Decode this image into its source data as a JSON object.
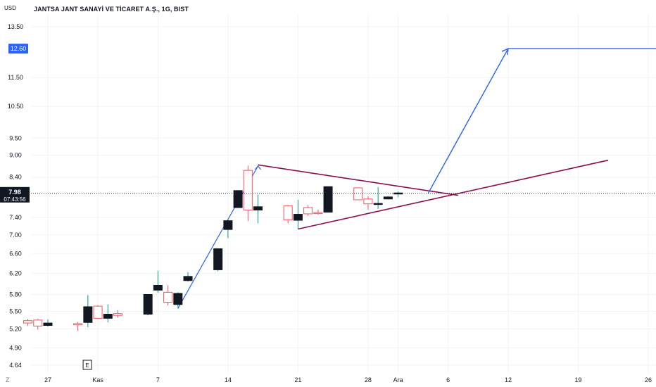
{
  "header": {
    "currency": "USD",
    "title": "JANTSA JANT SANAYİ VE TİCARET A.Ş., 1G, BIST"
  },
  "colors": {
    "up": "#f7525f",
    "down": "#131722",
    "down_wick": "#089981",
    "up_wick": "#f7525f",
    "pattern": "#880e4f",
    "projection": "#2962ff",
    "grid": "#f0f3fa",
    "text": "#131722",
    "target_label_bg": "#2962ff",
    "price_label_bg": "#131722"
  },
  "price_label": {
    "price": "7.98",
    "countdown": "07:43:56"
  },
  "target_label": "12.60",
  "corner_label": "Z",
  "event_marker": "E",
  "chart_data": {
    "type": "candlestick",
    "title": "JANTSA JANT SANAYİ VE TİCARET A.Ş., 1G, BIST",
    "ylabel": "USD",
    "y_scale": "log",
    "ylim": [
      4.55,
      14.2
    ],
    "y_ticks": [
      "13.50",
      "11.50",
      "10.50",
      "9.50",
      "9.00",
      "8.40",
      "7.40",
      "7.00",
      "6.60",
      "6.20",
      "5.80",
      "5.50",
      "5.20",
      "4.90",
      "4.64"
    ],
    "x_ticks": [
      {
        "label": "27",
        "date": "2023-10-27"
      },
      {
        "label": "Kas",
        "date": "2023-11-01"
      },
      {
        "label": "7",
        "date": "2023-11-07"
      },
      {
        "label": "14",
        "date": "2023-11-14"
      },
      {
        "label": "21",
        "date": "2023-11-21"
      },
      {
        "label": "28",
        "date": "2023-11-28"
      },
      {
        "label": "Ara",
        "date": "2023-12-01"
      },
      {
        "label": "6",
        "date": "2023-12-06"
      },
      {
        "label": "12",
        "date": "2023-12-12"
      },
      {
        "label": "19",
        "date": "2023-12-19"
      },
      {
        "label": "26",
        "date": "2023-12-26"
      }
    ],
    "candles": [
      {
        "date": "2023-10-25",
        "o": 5.3,
        "h": 5.37,
        "l": 5.25,
        "c": 5.34
      },
      {
        "date": "2023-10-26",
        "o": 5.25,
        "h": 5.37,
        "l": 5.19,
        "c": 5.35
      },
      {
        "date": "2023-10-27",
        "o": 5.3,
        "h": 5.36,
        "l": 5.24,
        "c": 5.26
      },
      {
        "date": "2023-10-30",
        "o": 5.27,
        "h": 5.32,
        "l": 5.17,
        "c": 5.29
      },
      {
        "date": "2023-10-31",
        "o": 5.58,
        "h": 5.79,
        "l": 5.23,
        "c": 5.31
      },
      {
        "date": "2023-11-01",
        "o": 5.38,
        "h": 5.61,
        "l": 5.37,
        "c": 5.59
      },
      {
        "date": "2023-11-02",
        "o": 5.45,
        "h": 5.62,
        "l": 5.31,
        "c": 5.38
      },
      {
        "date": "2023-11-03",
        "o": 5.43,
        "h": 5.52,
        "l": 5.39,
        "c": 5.46
      },
      {
        "date": "2023-11-06",
        "o": 5.8,
        "h": 5.8,
        "l": 5.43,
        "c": 5.45
      },
      {
        "date": "2023-11-07",
        "o": 5.97,
        "h": 6.25,
        "l": 5.83,
        "c": 5.88
      },
      {
        "date": "2023-11-08",
        "o": 5.66,
        "h": 5.97,
        "l": 5.6,
        "c": 5.84
      },
      {
        "date": "2023-11-09",
        "o": 5.82,
        "h": 5.84,
        "l": 5.56,
        "c": 5.62
      },
      {
        "date": "2023-11-10",
        "o": 6.14,
        "h": 6.22,
        "l": 6.04,
        "c": 6.06
      },
      {
        "date": "2023-11-13",
        "o": 6.7,
        "h": 6.71,
        "l": 6.24,
        "c": 6.27
      },
      {
        "date": "2023-11-14",
        "o": 7.32,
        "h": 7.35,
        "l": 6.93,
        "c": 7.12
      },
      {
        "date": "2023-11-15",
        "o": 8.05,
        "h": 8.06,
        "l": 7.62,
        "c": 7.63
      },
      {
        "date": "2023-11-16",
        "o": 7.57,
        "h": 8.71,
        "l": 7.31,
        "c": 8.58
      },
      {
        "date": "2023-11-17",
        "o": 7.65,
        "h": 7.95,
        "l": 7.26,
        "c": 7.57
      },
      {
        "date": "2023-11-20",
        "o": 7.34,
        "h": 7.69,
        "l": 7.26,
        "c": 7.67
      },
      {
        "date": "2023-11-21",
        "o": 7.47,
        "h": 7.82,
        "l": 7.13,
        "c": 7.33
      },
      {
        "date": "2023-11-22",
        "o": 7.48,
        "h": 7.69,
        "l": 7.43,
        "c": 7.63
      },
      {
        "date": "2023-11-23",
        "o": 7.51,
        "h": 7.58,
        "l": 7.46,
        "c": 7.51
      },
      {
        "date": "2023-11-24",
        "o": 8.15,
        "h": 8.16,
        "l": 7.51,
        "c": 7.52
      },
      {
        "date": "2023-11-27",
        "o": 7.82,
        "h": 8.13,
        "l": 7.82,
        "c": 8.12
      },
      {
        "date": "2023-11-28",
        "o": 7.72,
        "h": 7.91,
        "l": 7.58,
        "c": 7.84
      },
      {
        "date": "2023-11-29",
        "o": 7.73,
        "h": 8.14,
        "l": 7.6,
        "c": 7.71
      },
      {
        "date": "2023-11-30",
        "o": 7.89,
        "h": 7.91,
        "l": 7.83,
        "c": 7.84
      },
      {
        "date": "2023-12-01",
        "o": 7.99,
        "h": 8.03,
        "l": 7.88,
        "c": 7.97
      }
    ],
    "annotations": {
      "upper_trendline": [
        {
          "date": "2023-11-17",
          "price": 8.73
        },
        {
          "date": "2023-12-07",
          "price": 7.93
        }
      ],
      "lower_trendline": [
        {
          "date": "2023-11-21",
          "price": 7.13
        },
        {
          "date": "2023-12-22",
          "price": 8.86
        }
      ],
      "impulse_line": [
        {
          "date": "2023-11-09",
          "price": 5.55
        },
        {
          "date": "2023-11-17",
          "price": 8.7
        }
      ],
      "target_path": [
        {
          "date": "2023-12-04",
          "price": 7.98
        },
        {
          "date": "2023-12-12",
          "price": 12.6
        },
        {
          "date": "2023-12-29",
          "price": 12.6
        }
      ],
      "target_price": 12.6,
      "current_price": 7.98
    }
  }
}
